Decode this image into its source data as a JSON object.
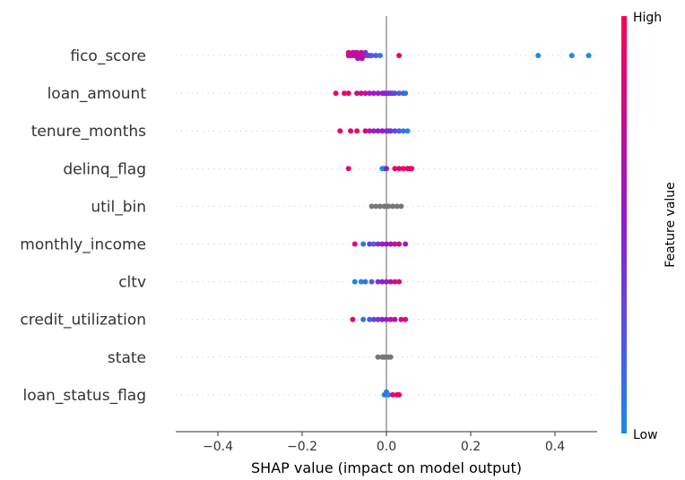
{
  "chart_data": {
    "type": "scatter",
    "title": "",
    "xlabel": "SHAP value (impact on model output)",
    "xlim": [
      -0.5,
      0.5
    ],
    "xticks": [
      -0.4,
      -0.2,
      0.0,
      0.2,
      0.4
    ],
    "xtick_labels": [
      "−0.4",
      "−0.2",
      "0.0",
      "0.2",
      "0.4"
    ],
    "colorbar": {
      "label": "Feature value",
      "high_label": "High",
      "low_label": "Low",
      "low_color": "#1e88e5",
      "mid_color": "#8e1ed0",
      "high_color": "#ff0052"
    },
    "no_value_color": "#777777",
    "features": [
      {
        "name": "fico_score",
        "points": [
          [
            -0.09,
            0.9
          ],
          [
            -0.09,
            0.8
          ],
          [
            -0.085,
            0.7
          ],
          [
            -0.08,
            0.9
          ],
          [
            -0.08,
            0.6
          ],
          [
            -0.075,
            0.8
          ],
          [
            -0.075,
            0.7
          ],
          [
            -0.07,
            0.9
          ],
          [
            -0.07,
            0.6
          ],
          [
            -0.068,
            0.5
          ],
          [
            -0.065,
            0.8
          ],
          [
            -0.062,
            0.7
          ],
          [
            -0.06,
            0.9
          ],
          [
            -0.058,
            0.6
          ],
          [
            -0.055,
            0.5
          ],
          [
            -0.052,
            0.8
          ],
          [
            -0.05,
            0.4
          ],
          [
            -0.045,
            0.3
          ],
          [
            -0.04,
            0.3
          ],
          [
            -0.035,
            0.2
          ],
          [
            -0.025,
            0.2
          ],
          [
            -0.015,
            0.1
          ],
          [
            0.03,
            0.9
          ],
          [
            0.36,
            0.0
          ],
          [
            0.44,
            0.0
          ],
          [
            0.48,
            0.0
          ]
        ]
      },
      {
        "name": "loan_amount",
        "points": [
          [
            -0.12,
            0.9
          ],
          [
            -0.1,
            0.9
          ],
          [
            -0.09,
            0.9
          ],
          [
            -0.07,
            0.8
          ],
          [
            -0.06,
            0.7
          ],
          [
            -0.05,
            0.8
          ],
          [
            -0.04,
            0.6
          ],
          [
            -0.03,
            0.5
          ],
          [
            -0.02,
            0.6
          ],
          [
            -0.01,
            0.5
          ],
          [
            -0.005,
            0.5
          ],
          [
            0.0,
            0.5
          ],
          [
            0.005,
            0.4
          ],
          [
            0.01,
            0.5
          ],
          [
            0.015,
            0.3
          ],
          [
            0.02,
            0.3
          ],
          [
            0.03,
            0.2
          ],
          [
            0.04,
            0.2
          ],
          [
            0.045,
            0.1
          ]
        ]
      },
      {
        "name": "tenure_months",
        "points": [
          [
            -0.11,
            0.9
          ],
          [
            -0.085,
            0.9
          ],
          [
            -0.07,
            0.9
          ],
          [
            -0.05,
            0.8
          ],
          [
            -0.04,
            0.7
          ],
          [
            -0.03,
            0.6
          ],
          [
            -0.02,
            0.5
          ],
          [
            -0.01,
            0.5
          ],
          [
            0.0,
            0.5
          ],
          [
            0.005,
            0.4
          ],
          [
            0.01,
            0.4
          ],
          [
            0.02,
            0.3
          ],
          [
            0.03,
            0.2
          ],
          [
            0.04,
            0.1
          ],
          [
            0.05,
            0.0
          ]
        ]
      },
      {
        "name": "delinq_flag",
        "points": [
          [
            -0.09,
            0.9
          ],
          [
            -0.01,
            0.0
          ],
          [
            -0.005,
            0.0
          ],
          [
            0.0,
            0.5
          ],
          [
            0.02,
            0.9
          ],
          [
            0.03,
            0.9
          ],
          [
            0.04,
            0.9
          ],
          [
            0.05,
            0.9
          ],
          [
            0.055,
            0.9
          ],
          [
            0.06,
            0.9
          ]
        ]
      },
      {
        "name": "util_bin",
        "points": [
          [
            -0.035,
            null
          ],
          [
            -0.025,
            null
          ],
          [
            -0.015,
            null
          ],
          [
            -0.005,
            null
          ],
          [
            0.0,
            null
          ],
          [
            0.005,
            null
          ],
          [
            0.015,
            null
          ],
          [
            0.025,
            null
          ],
          [
            0.035,
            null
          ]
        ]
      },
      {
        "name": "monthly_income",
        "points": [
          [
            -0.075,
            0.9
          ],
          [
            -0.055,
            0.1
          ],
          [
            -0.04,
            0.3
          ],
          [
            -0.03,
            0.2
          ],
          [
            -0.02,
            0.4
          ],
          [
            -0.01,
            0.6
          ],
          [
            0.0,
            0.5
          ],
          [
            0.01,
            0.6
          ],
          [
            0.02,
            0.7
          ],
          [
            0.03,
            0.8
          ],
          [
            0.045,
            0.5
          ]
        ]
      },
      {
        "name": "cltv",
        "points": [
          [
            -0.075,
            0.0
          ],
          [
            -0.06,
            0.0
          ],
          [
            -0.05,
            0.1
          ],
          [
            -0.035,
            0.2
          ],
          [
            -0.02,
            0.4
          ],
          [
            -0.01,
            0.5
          ],
          [
            0.0,
            0.6
          ],
          [
            0.01,
            0.7
          ],
          [
            0.02,
            0.8
          ],
          [
            0.03,
            0.8
          ]
        ]
      },
      {
        "name": "credit_utilization",
        "points": [
          [
            -0.08,
            0.9
          ],
          [
            -0.055,
            0.1
          ],
          [
            -0.04,
            0.2
          ],
          [
            -0.03,
            0.3
          ],
          [
            -0.02,
            0.4
          ],
          [
            -0.01,
            0.5
          ],
          [
            0.0,
            0.5
          ],
          [
            0.01,
            0.6
          ],
          [
            0.02,
            0.7
          ],
          [
            0.035,
            0.8
          ],
          [
            0.045,
            0.9
          ]
        ]
      },
      {
        "name": "state",
        "points": [
          [
            -0.02,
            null
          ],
          [
            -0.01,
            null
          ],
          [
            -0.005,
            null
          ],
          [
            0.0,
            null
          ],
          [
            0.005,
            null
          ],
          [
            0.01,
            null
          ]
        ]
      },
      {
        "name": "loan_status_flag",
        "points": [
          [
            -0.005,
            0.0
          ],
          [
            0.0,
            0.0
          ],
          [
            0.0,
            0.1
          ],
          [
            0.005,
            0.0
          ],
          [
            0.015,
            0.9
          ],
          [
            0.025,
            0.9
          ],
          [
            0.03,
            0.9
          ]
        ]
      }
    ]
  }
}
